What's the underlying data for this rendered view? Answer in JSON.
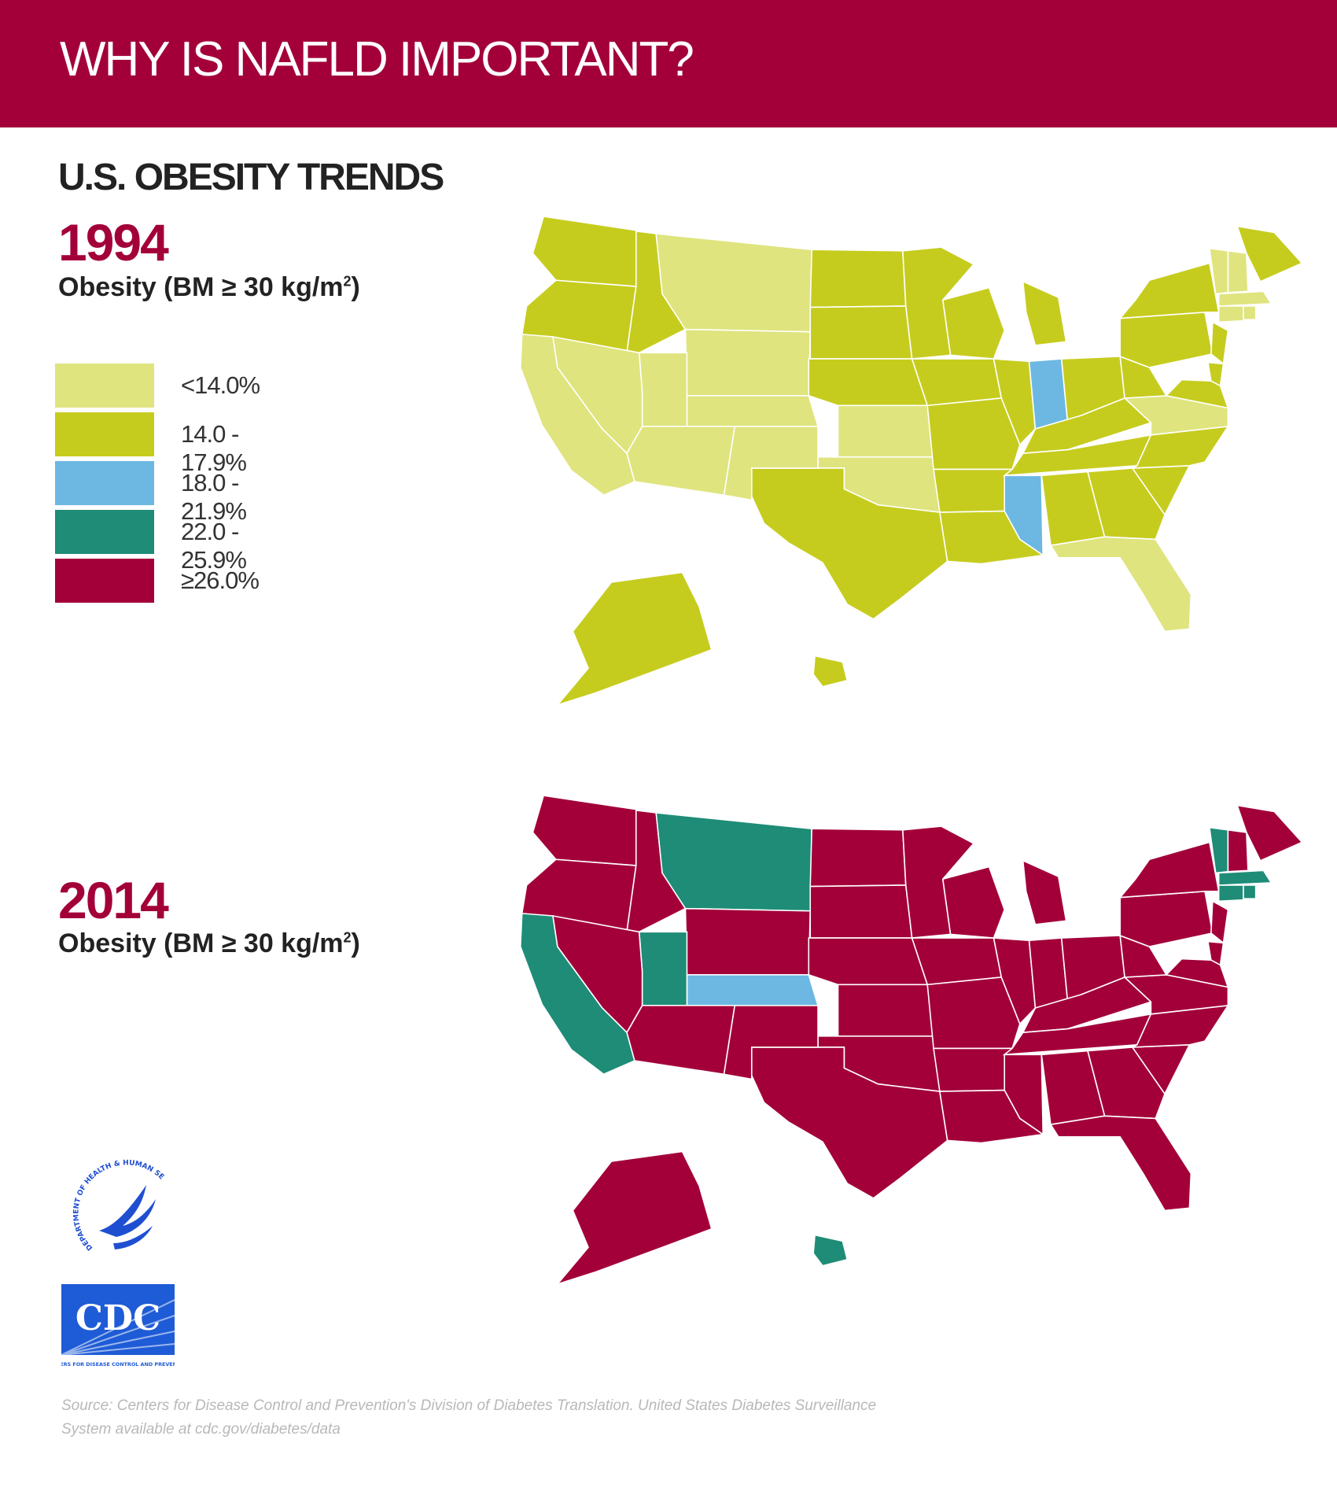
{
  "header": {
    "title": "WHY IS NAFLD IMPORTANT?"
  },
  "subtitle": "U.S. OBESITY TRENDS",
  "panels": [
    {
      "year": "1994",
      "label_prefix": "Obesity (BM ≥ 30 kg/m",
      "label_sup": "2",
      "label_suffix": ")"
    },
    {
      "year": "2014",
      "label_prefix": "Obesity (BM ≥ 30 kg/m",
      "label_sup": "2",
      "label_suffix": ")"
    }
  ],
  "legend": [
    {
      "label": "<14.0%",
      "color": "#dfe47e"
    },
    {
      "label": "14.0 - 17.9%",
      "color": "#c6cc1e"
    },
    {
      "label": "18.0 - 21.9%",
      "color": "#6cb8e2"
    },
    {
      "label": "22.0 - 25.9%",
      "color": "#1e8c76"
    },
    {
      "label": "≥26.0%",
      "color": "#a3003a"
    }
  ],
  "logos": {
    "hhs_text": "DEPARTMENT OF HEALTH & HUMAN SERVICES • USA",
    "cdc_text": "CDC",
    "cdc_subtext": "CENTERS FOR DISEASE CONTROL AND PREVENTION"
  },
  "source": "Source: Centers for Disease Control and Prevention's Division of Diabetes Translation. United States Diabetes Surveillance System available at cdc.gov/diabetes/data",
  "map_data": {
    "1994": {
      "<14.0%": [
        "MT",
        "WY",
        "CA",
        "NV",
        "UT",
        "CO",
        "AZ",
        "NM",
        "KS",
        "OK",
        "VA",
        "FL",
        "VT",
        "NH",
        "MA",
        "CT",
        "RI"
      ],
      "14.0 - 17.9%": [
        "WA",
        "OR",
        "ID",
        "ND",
        "SD",
        "NE",
        "MN",
        "IA",
        "MO",
        "WI",
        "IL",
        "MI",
        "OH",
        "KY",
        "TN",
        "AR",
        "LA",
        "TX",
        "AL",
        "GA",
        "SC",
        "NC",
        "WV",
        "PA",
        "NY",
        "NJ",
        "MD",
        "DE",
        "ME",
        "AK",
        "HI"
      ],
      "18.0 - 21.9%": [
        "IN",
        "MS"
      ]
    },
    "2014": {
      "18.0 - 21.9%": [
        "CO"
      ],
      "22.0 - 25.9%": [
        "MT",
        "CA",
        "UT",
        "VT",
        "MA",
        "CT",
        "RI",
        "HI"
      ],
      "≥26.0%": [
        "WA",
        "OR",
        "ID",
        "NV",
        "WY",
        "AZ",
        "NM",
        "ND",
        "SD",
        "NE",
        "KS",
        "OK",
        "TX",
        "MN",
        "IA",
        "MO",
        "AR",
        "LA",
        "WI",
        "IL",
        "MI",
        "IN",
        "OH",
        "KY",
        "TN",
        "MS",
        "AL",
        "GA",
        "FL",
        "SC",
        "NC",
        "VA",
        "WV",
        "PA",
        "NY",
        "NJ",
        "DE",
        "MD",
        "NH",
        "ME",
        "AK"
      ]
    }
  }
}
